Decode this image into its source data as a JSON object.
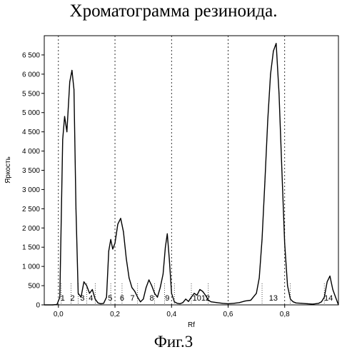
{
  "title": "Хроматограмма резиноида.",
  "caption": "Фиг.3",
  "chart_data": {
    "type": "line",
    "xlabel": "Rf",
    "ylabel": "Яркость",
    "xlim": [
      -0.05,
      0.99
    ],
    "ylim": [
      0,
      7000
    ],
    "x_ticks": [
      {
        "value": 0.0,
        "label": "0,0"
      },
      {
        "value": 0.2,
        "label": "0,2"
      },
      {
        "value": 0.4,
        "label": "0,4"
      },
      {
        "value": 0.6,
        "label": "0,6"
      },
      {
        "value": 0.8,
        "label": "0,8"
      }
    ],
    "y_ticks": [
      {
        "value": 0,
        "label": "0"
      },
      {
        "value": 500,
        "label": "500"
      },
      {
        "value": 1000,
        "label": "1 000"
      },
      {
        "value": 1500,
        "label": "1 500"
      },
      {
        "value": 2000,
        "label": "2 000"
      },
      {
        "value": 2500,
        "label": "2 500"
      },
      {
        "value": 3000,
        "label": "3 000"
      },
      {
        "value": 3500,
        "label": "3 500"
      },
      {
        "value": 4000,
        "label": "4 000"
      },
      {
        "value": 4500,
        "label": "4 500"
      },
      {
        "value": 5000,
        "label": "5 000"
      },
      {
        "value": 5500,
        "label": "5 500"
      },
      {
        "value": 6000,
        "label": "6 000"
      },
      {
        "value": 6500,
        "label": "6 500"
      }
    ],
    "peak_boundaries": [
      0.01,
      0.045,
      0.07,
      0.1,
      0.13,
      0.185,
      0.225,
      0.28,
      0.34,
      0.375,
      0.41,
      0.47,
      0.53,
      0.72,
      0.82,
      0.94
    ],
    "peak_labels": [
      {
        "label": "1",
        "x": 0.015
      },
      {
        "label": "2",
        "x": 0.05
      },
      {
        "label": "3",
        "x": 0.085
      },
      {
        "label": "4",
        "x": 0.115
      },
      {
        "label": "5",
        "x": 0.183
      },
      {
        "label": "6",
        "x": 0.225
      },
      {
        "label": "7",
        "x": 0.262
      },
      {
        "label": "8",
        "x": 0.33
      },
      {
        "label": "9",
        "x": 0.385
      },
      {
        "label": "1012",
        "x": 0.505
      },
      {
        "label": "13",
        "x": 0.76
      },
      {
        "label": "14",
        "x": 0.955
      }
    ],
    "series": [
      {
        "x": [
          -0.05,
          -0.02,
          -0.005,
          0.005,
          0.015,
          0.022,
          0.03,
          0.04,
          0.048,
          0.055,
          0.062,
          0.07,
          0.08,
          0.09,
          0.1,
          0.11,
          0.12,
          0.13,
          0.14,
          0.15,
          0.16,
          0.17,
          0.178,
          0.185,
          0.192,
          0.2,
          0.21,
          0.22,
          0.23,
          0.24,
          0.25,
          0.26,
          0.27,
          0.28,
          0.29,
          0.3,
          0.31,
          0.32,
          0.33,
          0.34,
          0.35,
          0.36,
          0.37,
          0.378,
          0.385,
          0.392,
          0.4,
          0.41,
          0.42,
          0.43,
          0.44,
          0.45,
          0.46,
          0.47,
          0.48,
          0.49,
          0.5,
          0.51,
          0.52,
          0.53,
          0.54,
          0.56,
          0.58,
          0.6,
          0.62,
          0.64,
          0.66,
          0.68,
          0.7,
          0.71,
          0.72,
          0.73,
          0.74,
          0.75,
          0.76,
          0.77,
          0.78,
          0.79,
          0.8,
          0.81,
          0.82,
          0.83,
          0.84,
          0.86,
          0.88,
          0.9,
          0.92,
          0.93,
          0.94,
          0.95,
          0.96,
          0.97,
          0.98,
          0.99
        ],
        "y": [
          0,
          0,
          10,
          200,
          4300,
          4900,
          4500,
          5800,
          6100,
          5600,
          2500,
          300,
          200,
          600,
          500,
          300,
          400,
          150,
          50,
          30,
          40,
          200,
          1400,
          1700,
          1450,
          1600,
          2100,
          2250,
          1900,
          1200,
          700,
          450,
          350,
          200,
          80,
          150,
          450,
          650,
          500,
          300,
          200,
          450,
          800,
          1500,
          1850,
          1200,
          300,
          80,
          40,
          30,
          60,
          150,
          90,
          200,
          300,
          250,
          400,
          350,
          250,
          120,
          80,
          60,
          40,
          30,
          40,
          60,
          100,
          120,
          300,
          700,
          1700,
          3200,
          4800,
          6000,
          6600,
          6800,
          5500,
          3500,
          1600,
          500,
          150,
          80,
          50,
          40,
          30,
          20,
          40,
          80,
          200,
          600,
          750,
          400,
          200,
          0
        ]
      }
    ],
    "grid": {
      "vertical_dotted": true,
      "horizontal": false
    },
    "legend": "none"
  }
}
